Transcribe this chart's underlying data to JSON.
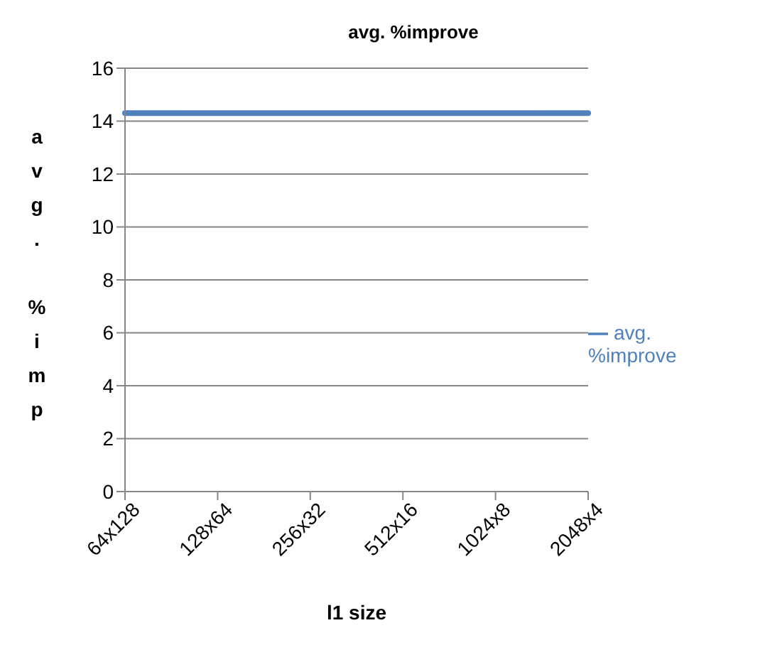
{
  "chart_data": {
    "type": "line",
    "title": "avg. %improve",
    "xlabel": "l1 size",
    "ylabel": "avg. %imp",
    "categories": [
      "64x128",
      "128x64",
      "256x32",
      "512x16",
      "1024x8",
      "2048x4"
    ],
    "series": [
      {
        "name": "avg. %improve",
        "color": "#4f81bd",
        "values": [
          14.3,
          14.3,
          14.3,
          14.3,
          14.3,
          14.3
        ]
      }
    ],
    "ylim": [
      0,
      16
    ],
    "yticks": [
      0,
      2,
      4,
      6,
      8,
      10,
      12,
      14,
      16
    ],
    "grid": "y",
    "legend": "right",
    "marker": "none",
    "line_style": "solid"
  }
}
